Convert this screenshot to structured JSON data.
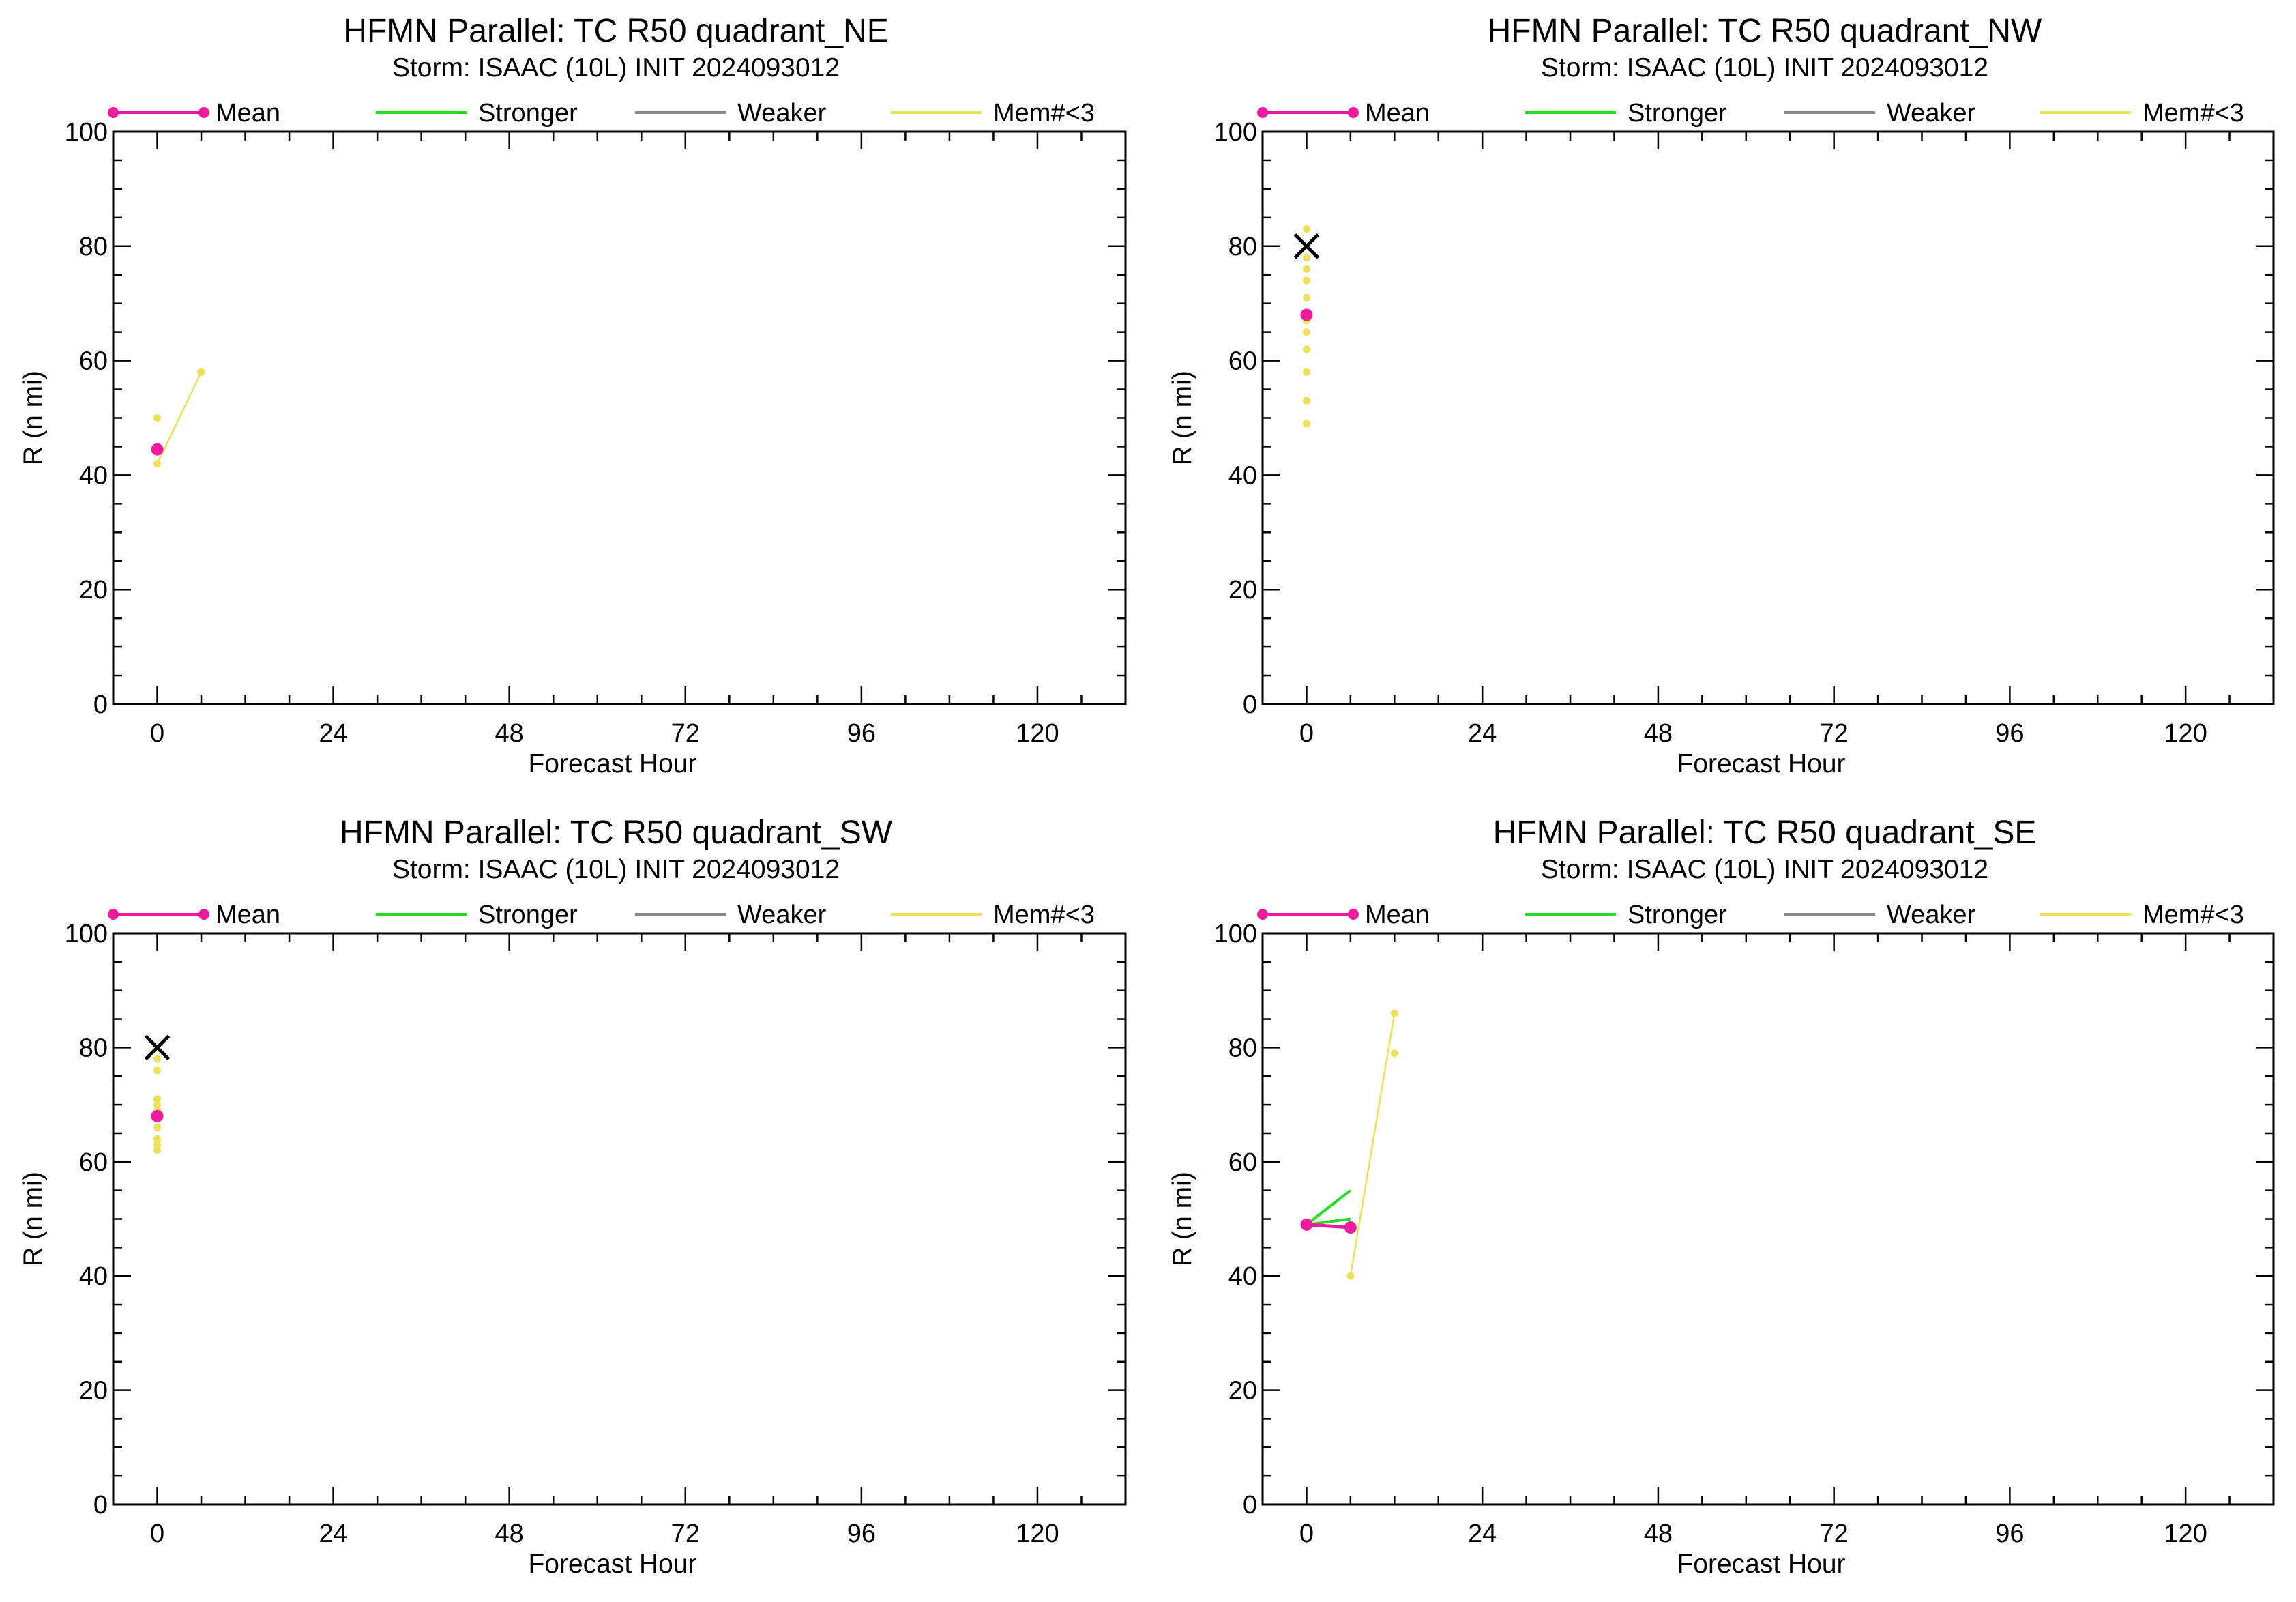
{
  "chart_data": [
    {
      "type": "line",
      "title": "HFMN Parallel: TC  R50 quadrant_NE",
      "subtitle": "Storm: ISAAC (10L) INIT 2024093012",
      "xlabel": "Forecast Hour",
      "ylabel": "R (n mi)",
      "xlim": [
        -6,
        132
      ],
      "ylim": [
        0,
        100
      ],
      "xticks": [
        0,
        24,
        48,
        72,
        96,
        120
      ],
      "yticks": [
        0,
        20,
        40,
        60,
        80,
        100
      ],
      "legend": [
        "Mean",
        "Stronger",
        "Weaker",
        "Mem#<3"
      ],
      "series": [
        {
          "name": "Mem#<3",
          "color": "#efe05a",
          "x": [
            0,
            0,
            6
          ],
          "y": [
            50,
            42,
            58
          ]
        },
        {
          "name": "Mean",
          "color": "#ee1c9c",
          "x": [
            0
          ],
          "y": [
            44.5
          ]
        }
      ],
      "best_track": []
    },
    {
      "type": "line",
      "title": "HFMN Parallel: TC  R50 quadrant_NW",
      "subtitle": "Storm: ISAAC (10L) INIT 2024093012",
      "xlabel": "Forecast Hour",
      "ylabel": "R (n mi)",
      "xlim": [
        -6,
        132
      ],
      "ylim": [
        0,
        100
      ],
      "xticks": [
        0,
        24,
        48,
        72,
        96,
        120
      ],
      "yticks": [
        0,
        20,
        40,
        60,
        80,
        100
      ],
      "legend": [
        "Mean",
        "Stronger",
        "Weaker",
        "Mem#<3"
      ],
      "series": [
        {
          "name": "Mem#<3",
          "color": "#efe05a",
          "x": [
            0,
            0,
            0,
            0,
            0,
            0,
            0,
            0,
            0,
            0,
            0,
            0
          ],
          "y": [
            83,
            78,
            76,
            74,
            71,
            68,
            65,
            62,
            58,
            53,
            49,
            67
          ]
        },
        {
          "name": "Mean",
          "color": "#ee1c9c",
          "x": [
            0
          ],
          "y": [
            68
          ]
        }
      ],
      "best_track": [
        {
          "x": 0,
          "y": 80
        }
      ]
    },
    {
      "type": "line",
      "title": "HFMN Parallel: TC  R50 quadrant_SW",
      "subtitle": "Storm: ISAAC (10L) INIT 2024093012",
      "xlabel": "Forecast Hour",
      "ylabel": "R (n mi)",
      "xlim": [
        -6,
        132
      ],
      "ylim": [
        0,
        100
      ],
      "xticks": [
        0,
        24,
        48,
        72,
        96,
        120
      ],
      "yticks": [
        0,
        20,
        40,
        60,
        80,
        100
      ],
      "legend": [
        "Mean",
        "Stronger",
        "Weaker",
        "Mem#<3"
      ],
      "series": [
        {
          "name": "Mem#<3",
          "color": "#efe05a",
          "x": [
            0,
            0,
            0,
            0,
            0,
            0,
            0,
            0,
            0
          ],
          "y": [
            78,
            76,
            71,
            70,
            69,
            66,
            63,
            62,
            64
          ]
        },
        {
          "name": "Mean",
          "color": "#ee1c9c",
          "x": [
            0
          ],
          "y": [
            68
          ]
        }
      ],
      "best_track": [
        {
          "x": 0,
          "y": 80
        }
      ]
    },
    {
      "type": "line",
      "title": "HFMN Parallel: TC  R50 quadrant_SE",
      "subtitle": "Storm: ISAAC (10L) INIT 2024093012",
      "xlabel": "Forecast Hour",
      "ylabel": "R (n mi)",
      "xlim": [
        -6,
        132
      ],
      "ylim": [
        0,
        100
      ],
      "xticks": [
        0,
        24,
        48,
        72,
        96,
        120
      ],
      "yticks": [
        0,
        20,
        40,
        60,
        80,
        100
      ],
      "legend": [
        "Mean",
        "Stronger",
        "Weaker",
        "Mem#<3"
      ],
      "series": [
        {
          "name": "Mem#<3",
          "color": "#efe05a",
          "x": [
            6,
            12,
            12
          ],
          "y": [
            40,
            86,
            79
          ]
        },
        {
          "name": "Stronger",
          "color": "#22dd22",
          "x": [
            0,
            6
          ],
          "y": [
            49,
            55
          ]
        },
        {
          "name": "Stronger",
          "color": "#22dd22",
          "x": [
            0,
            6
          ],
          "y": [
            49,
            50
          ]
        },
        {
          "name": "Mean",
          "color": "#ee1c9c",
          "x": [
            0,
            6
          ],
          "y": [
            49,
            48.5
          ]
        }
      ],
      "best_track": []
    }
  ],
  "colors": {
    "mean": "#ee1c9c",
    "stronger": "#22dd22",
    "weaker": "#888888",
    "few_members": "#efe05a",
    "best_track": "#000000"
  }
}
